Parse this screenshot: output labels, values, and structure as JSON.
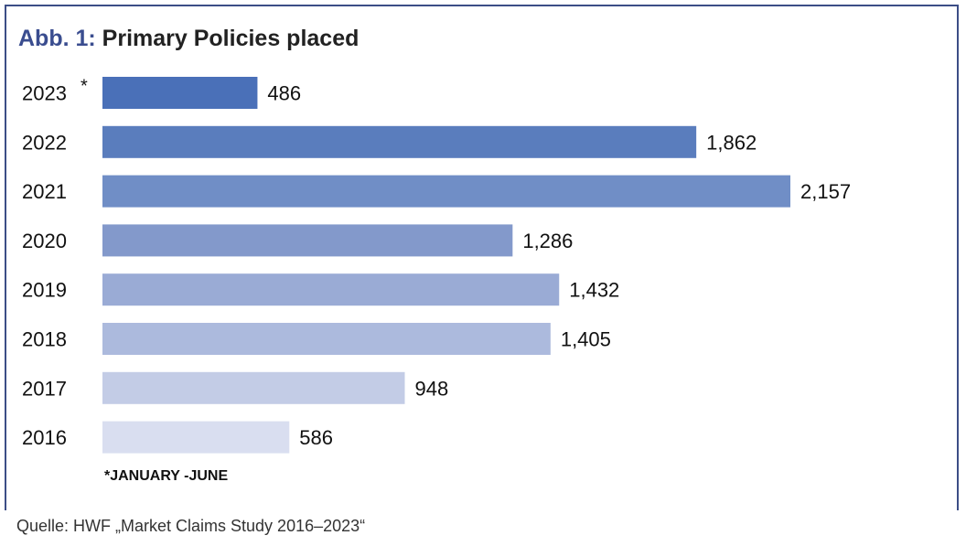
{
  "title": {
    "prefix": "Abb. 1:",
    "text": "Primary Policies placed"
  },
  "footnote": "*JANUARY -JUNE",
  "source": "Quelle: HWF „Market Claims Study 2016–2023“",
  "chart_data": {
    "type": "bar",
    "orientation": "horizontal",
    "categories": [
      "2023",
      "2022",
      "2021",
      "2020",
      "2019",
      "2018",
      "2017",
      "2016"
    ],
    "values": [
      486,
      1862,
      2157,
      1286,
      1432,
      1405,
      948,
      586
    ],
    "value_labels": [
      "486",
      "1,862",
      "2,157",
      "1,286",
      "1,432",
      "1,405",
      "948",
      "586"
    ],
    "category_marks": [
      "*",
      "",
      "",
      "",
      "",
      "",
      "",
      ""
    ],
    "colors": [
      "#4a70b8",
      "#5a7dbd",
      "#708ec6",
      "#8399cb",
      "#9aabd5",
      "#acbadd",
      "#c3cce6",
      "#d9def0"
    ],
    "xlim": [
      0,
      2157
    ],
    "grid": false,
    "legend": "none"
  }
}
